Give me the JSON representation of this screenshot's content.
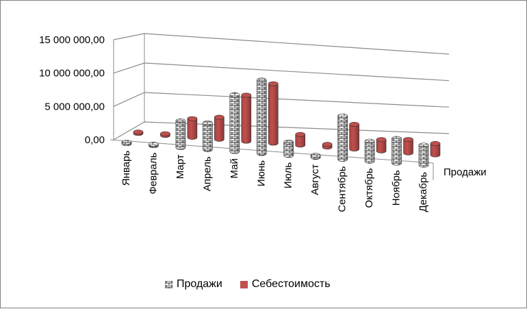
{
  "chart_data": {
    "type": "bar",
    "subtype": "3d-cylinder",
    "categories": [
      "Январь",
      "Февраль",
      "Март",
      "Апрель",
      "Май",
      "Июнь",
      "Июль",
      "Август",
      "Сентябрь",
      "Октябрь",
      "Ноябрь",
      "Декабрь"
    ],
    "series": [
      {
        "name": "Продажи",
        "values": [
          50000,
          100000,
          4000000,
          4000000,
          8500000,
          11000000,
          2000000,
          300000,
          6500000,
          3000000,
          3700000,
          3000000
        ],
        "color": "#e8e8e8",
        "pattern": "brick"
      },
      {
        "name": "Себестоимость",
        "values": [
          50000,
          250000,
          2800000,
          3300000,
          6900000,
          8900000,
          1600000,
          400000,
          3700000,
          1700000,
          2000000,
          1700000
        ],
        "color": "#c0504d"
      }
    ],
    "depth_axis_label": "Продажи",
    "y_ticks": [
      "0,00",
      "5 000 000,00",
      "10 000 000,00",
      "15 000 000,00"
    ],
    "ylim": [
      0,
      15000000
    ],
    "grid": true,
    "legend_position": "bottom"
  }
}
